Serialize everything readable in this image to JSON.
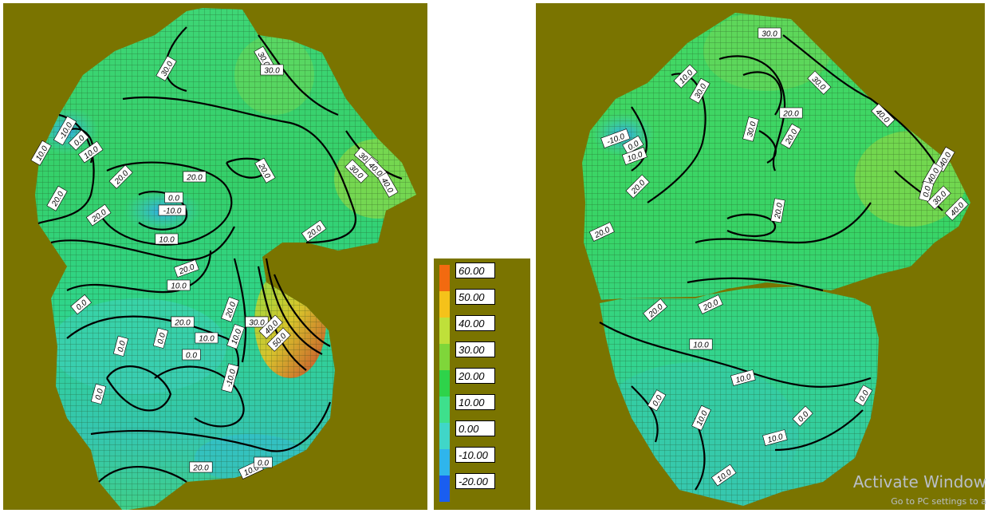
{
  "colors": {
    "background": "#7a7400",
    "grid_line": "#1b3a10",
    "contour_line": "#000000",
    "scale": [
      "#1a5ef0",
      "#2fb5ec",
      "#40d6c8",
      "#3ee08c",
      "#2ed34a",
      "#7fd63a",
      "#bfe03a",
      "#f5c21a",
      "#f26a10"
    ]
  },
  "legend": {
    "labels": [
      "60.00",
      "50.00",
      "40.00",
      "30.00",
      "20.00",
      "10.00",
      "0.00",
      "-10.00",
      "-20.00"
    ]
  },
  "left_map": {
    "labels": [
      "10.0",
      "30.0",
      "30.0",
      "30.0",
      "-10.0",
      "0.0",
      "10.0",
      "20.0",
      "20.0",
      "20.0",
      "20.0",
      "20.0",
      "0.0",
      "-10.0",
      "10.0",
      "20.0",
      "20.0",
      "30.0",
      "30.0",
      "40.0",
      "40.0",
      "20.0",
      "10.0",
      "10.0",
      "0.0",
      "0.0",
      "0.0",
      "0.0",
      "20.0",
      "10.0",
      "30.0",
      "40.0",
      "50.0",
      "0.0",
      "-10.0",
      "10.0",
      "0.0",
      "20.0"
    ]
  },
  "right_map": {
    "labels": [
      "30.0",
      "10.0",
      "30.0",
      "30.0",
      "20.0",
      "40.0",
      "-10.0",
      "0.0",
      "10.0",
      "20.0",
      "30.0",
      "20.0",
      "40.0",
      "40.0",
      "0.0",
      "30.0",
      "40.0",
      "20.0",
      "20.0",
      "20.0",
      "20.0",
      "10.0",
      "10.0",
      "0.0",
      "0.0",
      "10.0",
      "10.0",
      "0.0",
      "10.0"
    ]
  },
  "watermark": {
    "title": "Activate Window",
    "subtitle": "Go to PC settings to a"
  }
}
